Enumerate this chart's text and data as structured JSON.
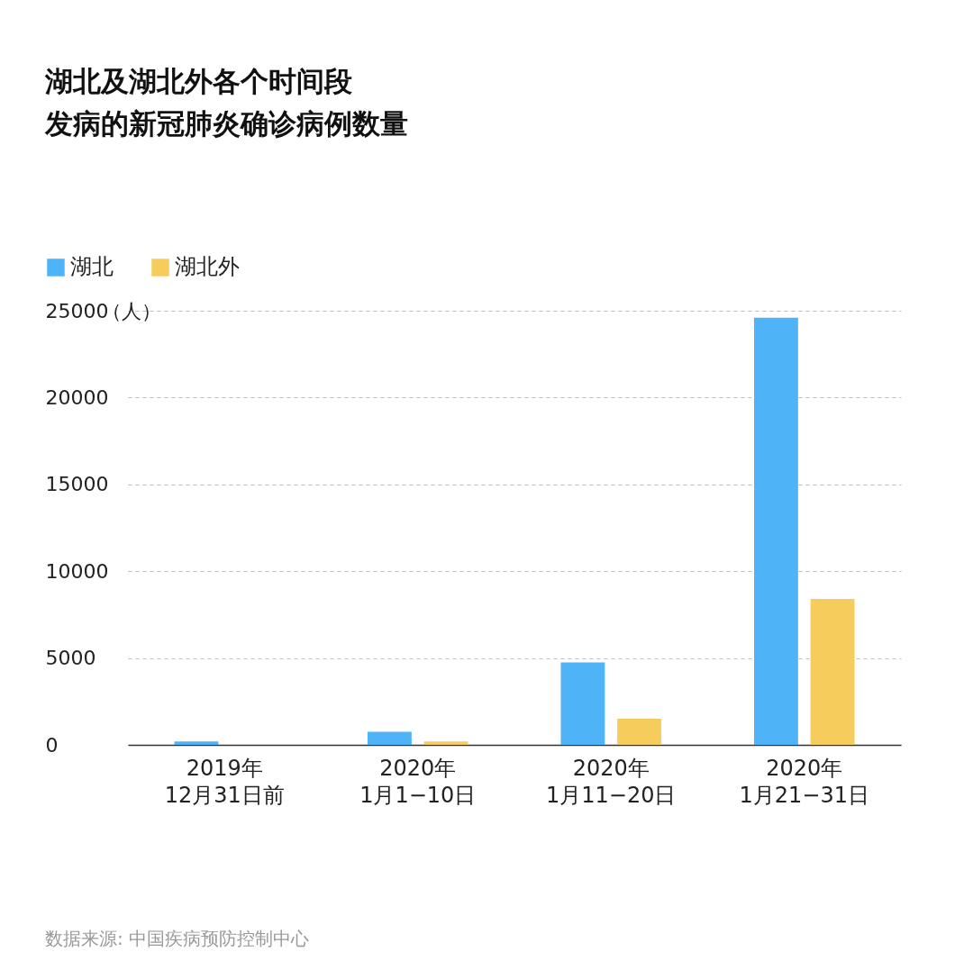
{
  "chart_data": {
    "type": "bar",
    "title": "湖北及湖北外各个时间段",
    "subtitle": "发病的新冠肺炎确诊病例数量",
    "ylabel": "（人）",
    "categories": [
      "2019年\n12月31日前",
      "2020年\n1月1−10日",
      "2020年\n1月11−20日",
      "2020年\n1月21−31日"
    ],
    "series": [
      {
        "name": "湖北",
        "color": "#4fb4f7",
        "values": [
          200,
          750,
          4750,
          24600
        ]
      },
      {
        "name": "湖北外",
        "color": "#f6cd5c",
        "values": [
          0,
          200,
          1500,
          8400
        ]
      }
    ],
    "ylim": [
      0,
      25000
    ],
    "yticks": [
      0,
      5000,
      10000,
      15000,
      20000,
      25000
    ],
    "grid": "y",
    "legend": "top left",
    "annotations": [
      "数据来源: 中国疾病预防控制中心"
    ]
  }
}
